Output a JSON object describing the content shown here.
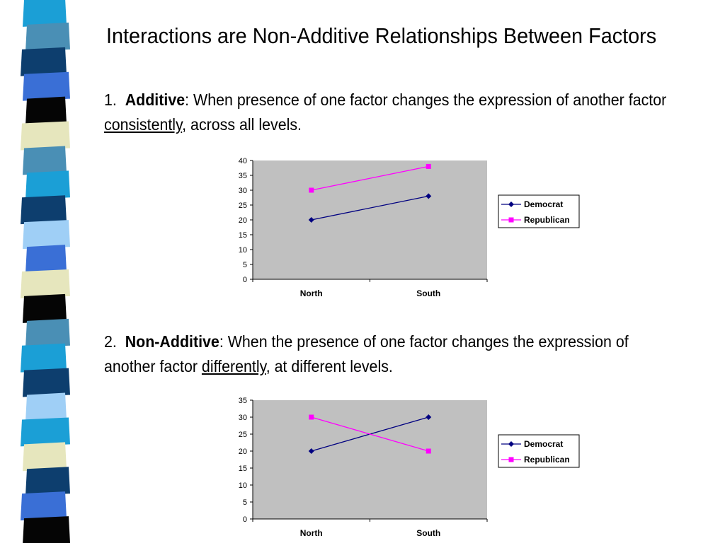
{
  "title": "Interactions are Non-Additive Relationships Between Factors",
  "sections": [
    {
      "number": "1.",
      "term": "Additive",
      "text_a": ":  When presence of one factor changes the expression of another factor ",
      "emphasis": "consistently",
      "text_b": ", across all levels."
    },
    {
      "number": "2.",
      "term": "Non-Additive",
      "text_a": ":  When the presence of one factor changes the expression of another factor ",
      "emphasis": "differently",
      "text_b": ", at different levels."
    }
  ],
  "colors": {
    "plot_bg": "#c0c0c0",
    "democrat": "#000080",
    "republican": "#ff00ff",
    "strip": [
      "#1b9fd6",
      "#4a8fb5",
      "#0d3e6e",
      "#3a6fd6",
      "#050505",
      "#e6e6bd",
      "#4a8fb5",
      "#1b9fd6",
      "#0d3e6e",
      "#9fcff6",
      "#3a6fd6",
      "#e6e6bd",
      "#050505",
      "#4a8fb5",
      "#1b9fd6",
      "#0d3e6e",
      "#9fcff6",
      "#1b9fd6",
      "#e6e6bd",
      "#0d3e6e",
      "#3a6fd6",
      "#050505"
    ]
  },
  "chart_data": [
    {
      "type": "line",
      "categories": [
        "North",
        "South"
      ],
      "series": [
        {
          "name": "Democrat",
          "values": [
            20,
            28
          ],
          "marker": "diamond"
        },
        {
          "name": "Republican",
          "values": [
            30,
            38
          ],
          "marker": "square"
        }
      ],
      "ylim": [
        0,
        40
      ],
      "yticks": [
        0,
        5,
        10,
        15,
        20,
        25,
        30,
        35,
        40
      ],
      "legend": "right",
      "grid": false
    },
    {
      "type": "line",
      "categories": [
        "North",
        "South"
      ],
      "series": [
        {
          "name": "Democrat",
          "values": [
            20,
            30
          ],
          "marker": "diamond"
        },
        {
          "name": "Republican",
          "values": [
            30,
            20
          ],
          "marker": "square"
        }
      ],
      "ylim": [
        0,
        35
      ],
      "yticks": [
        0,
        5,
        10,
        15,
        20,
        25,
        30,
        35
      ],
      "legend": "right",
      "grid": false
    }
  ]
}
